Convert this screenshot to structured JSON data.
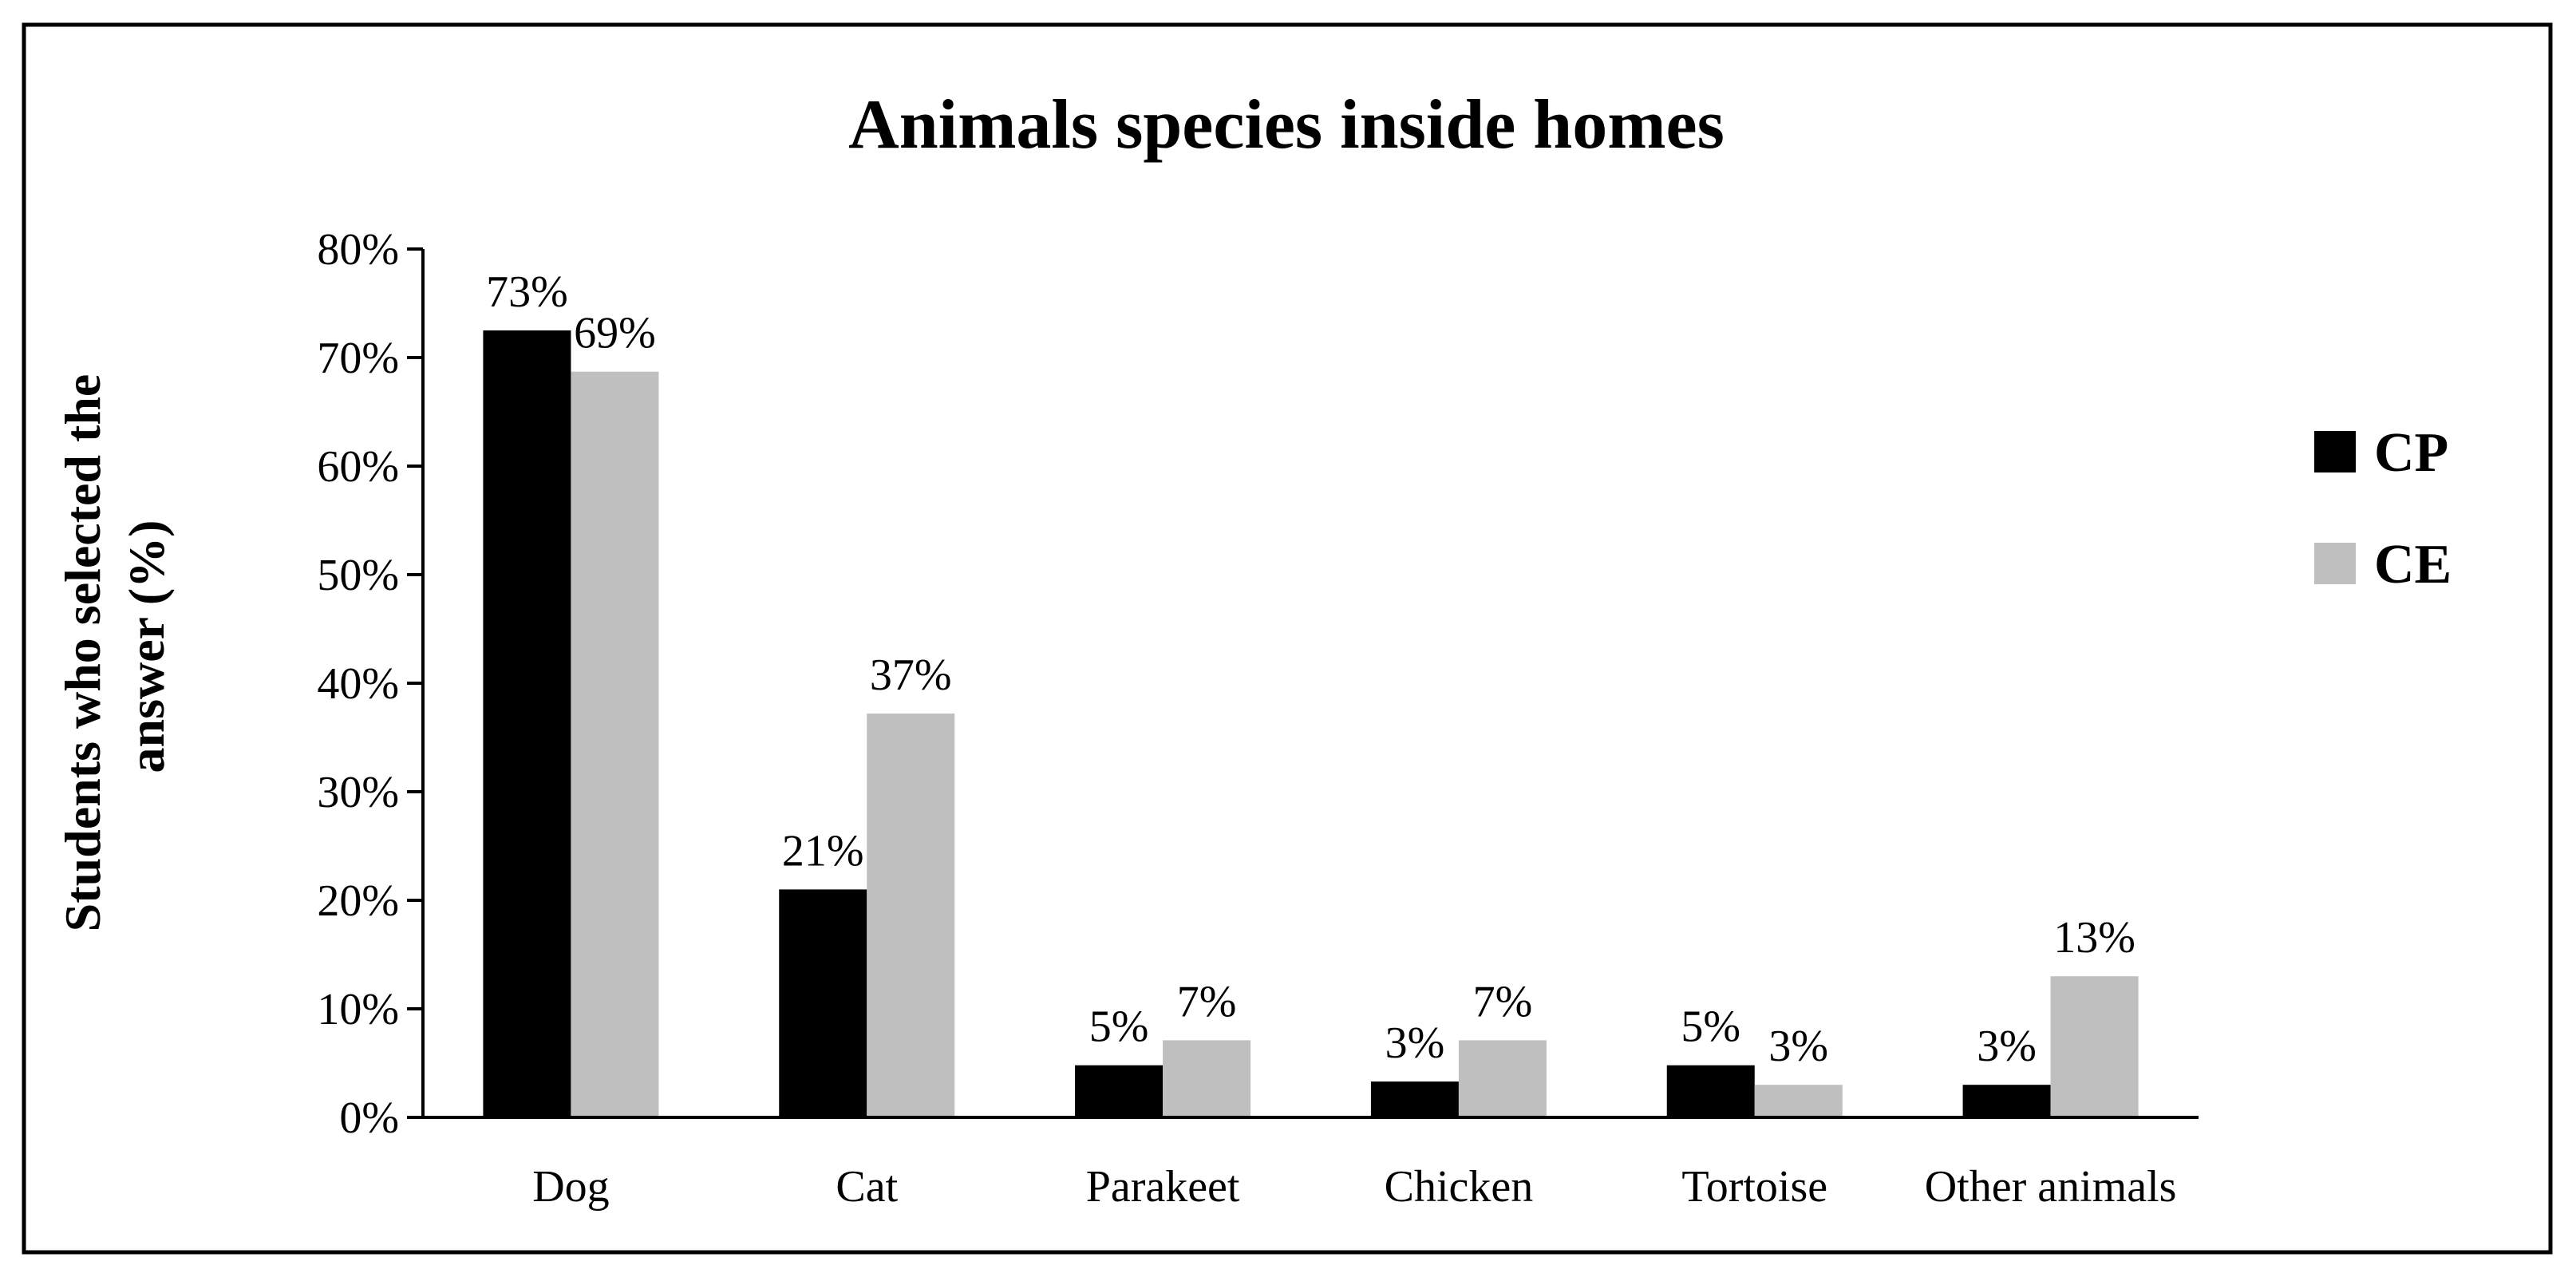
{
  "chart_data": {
    "type": "bar",
    "title": "Animals species inside homes",
    "xlabel": "",
    "ylabel": "Students who selected the answer (%)",
    "ylabel_lines": [
      "Students who selected the",
      "answer (%)"
    ],
    "categories": [
      "Dog",
      "Cat",
      "Parakeet",
      "Chicken",
      "Tortoise",
      "Other animals"
    ],
    "series": [
      {
        "name": "CP",
        "color": "#000000",
        "values": [
          72.5,
          21,
          4.8,
          3.3,
          4.8,
          3
        ],
        "labels": [
          "73%",
          "21%",
          "5%",
          "3%",
          "5%",
          "3%"
        ]
      },
      {
        "name": "CE",
        "color": "#bfbfbf",
        "values": [
          68.7,
          37.2,
          7.1,
          7.1,
          3,
          13
        ],
        "labels": [
          "69%",
          "37%",
          "7%",
          "7%",
          "3%",
          "13%"
        ]
      }
    ],
    "ylim": [
      0,
      80
    ],
    "yticks": [
      "0%",
      "10%",
      "20%",
      "30%",
      "40%",
      "50%",
      "60%",
      "70%",
      "80%"
    ],
    "grid": false,
    "legend_position": "right"
  }
}
